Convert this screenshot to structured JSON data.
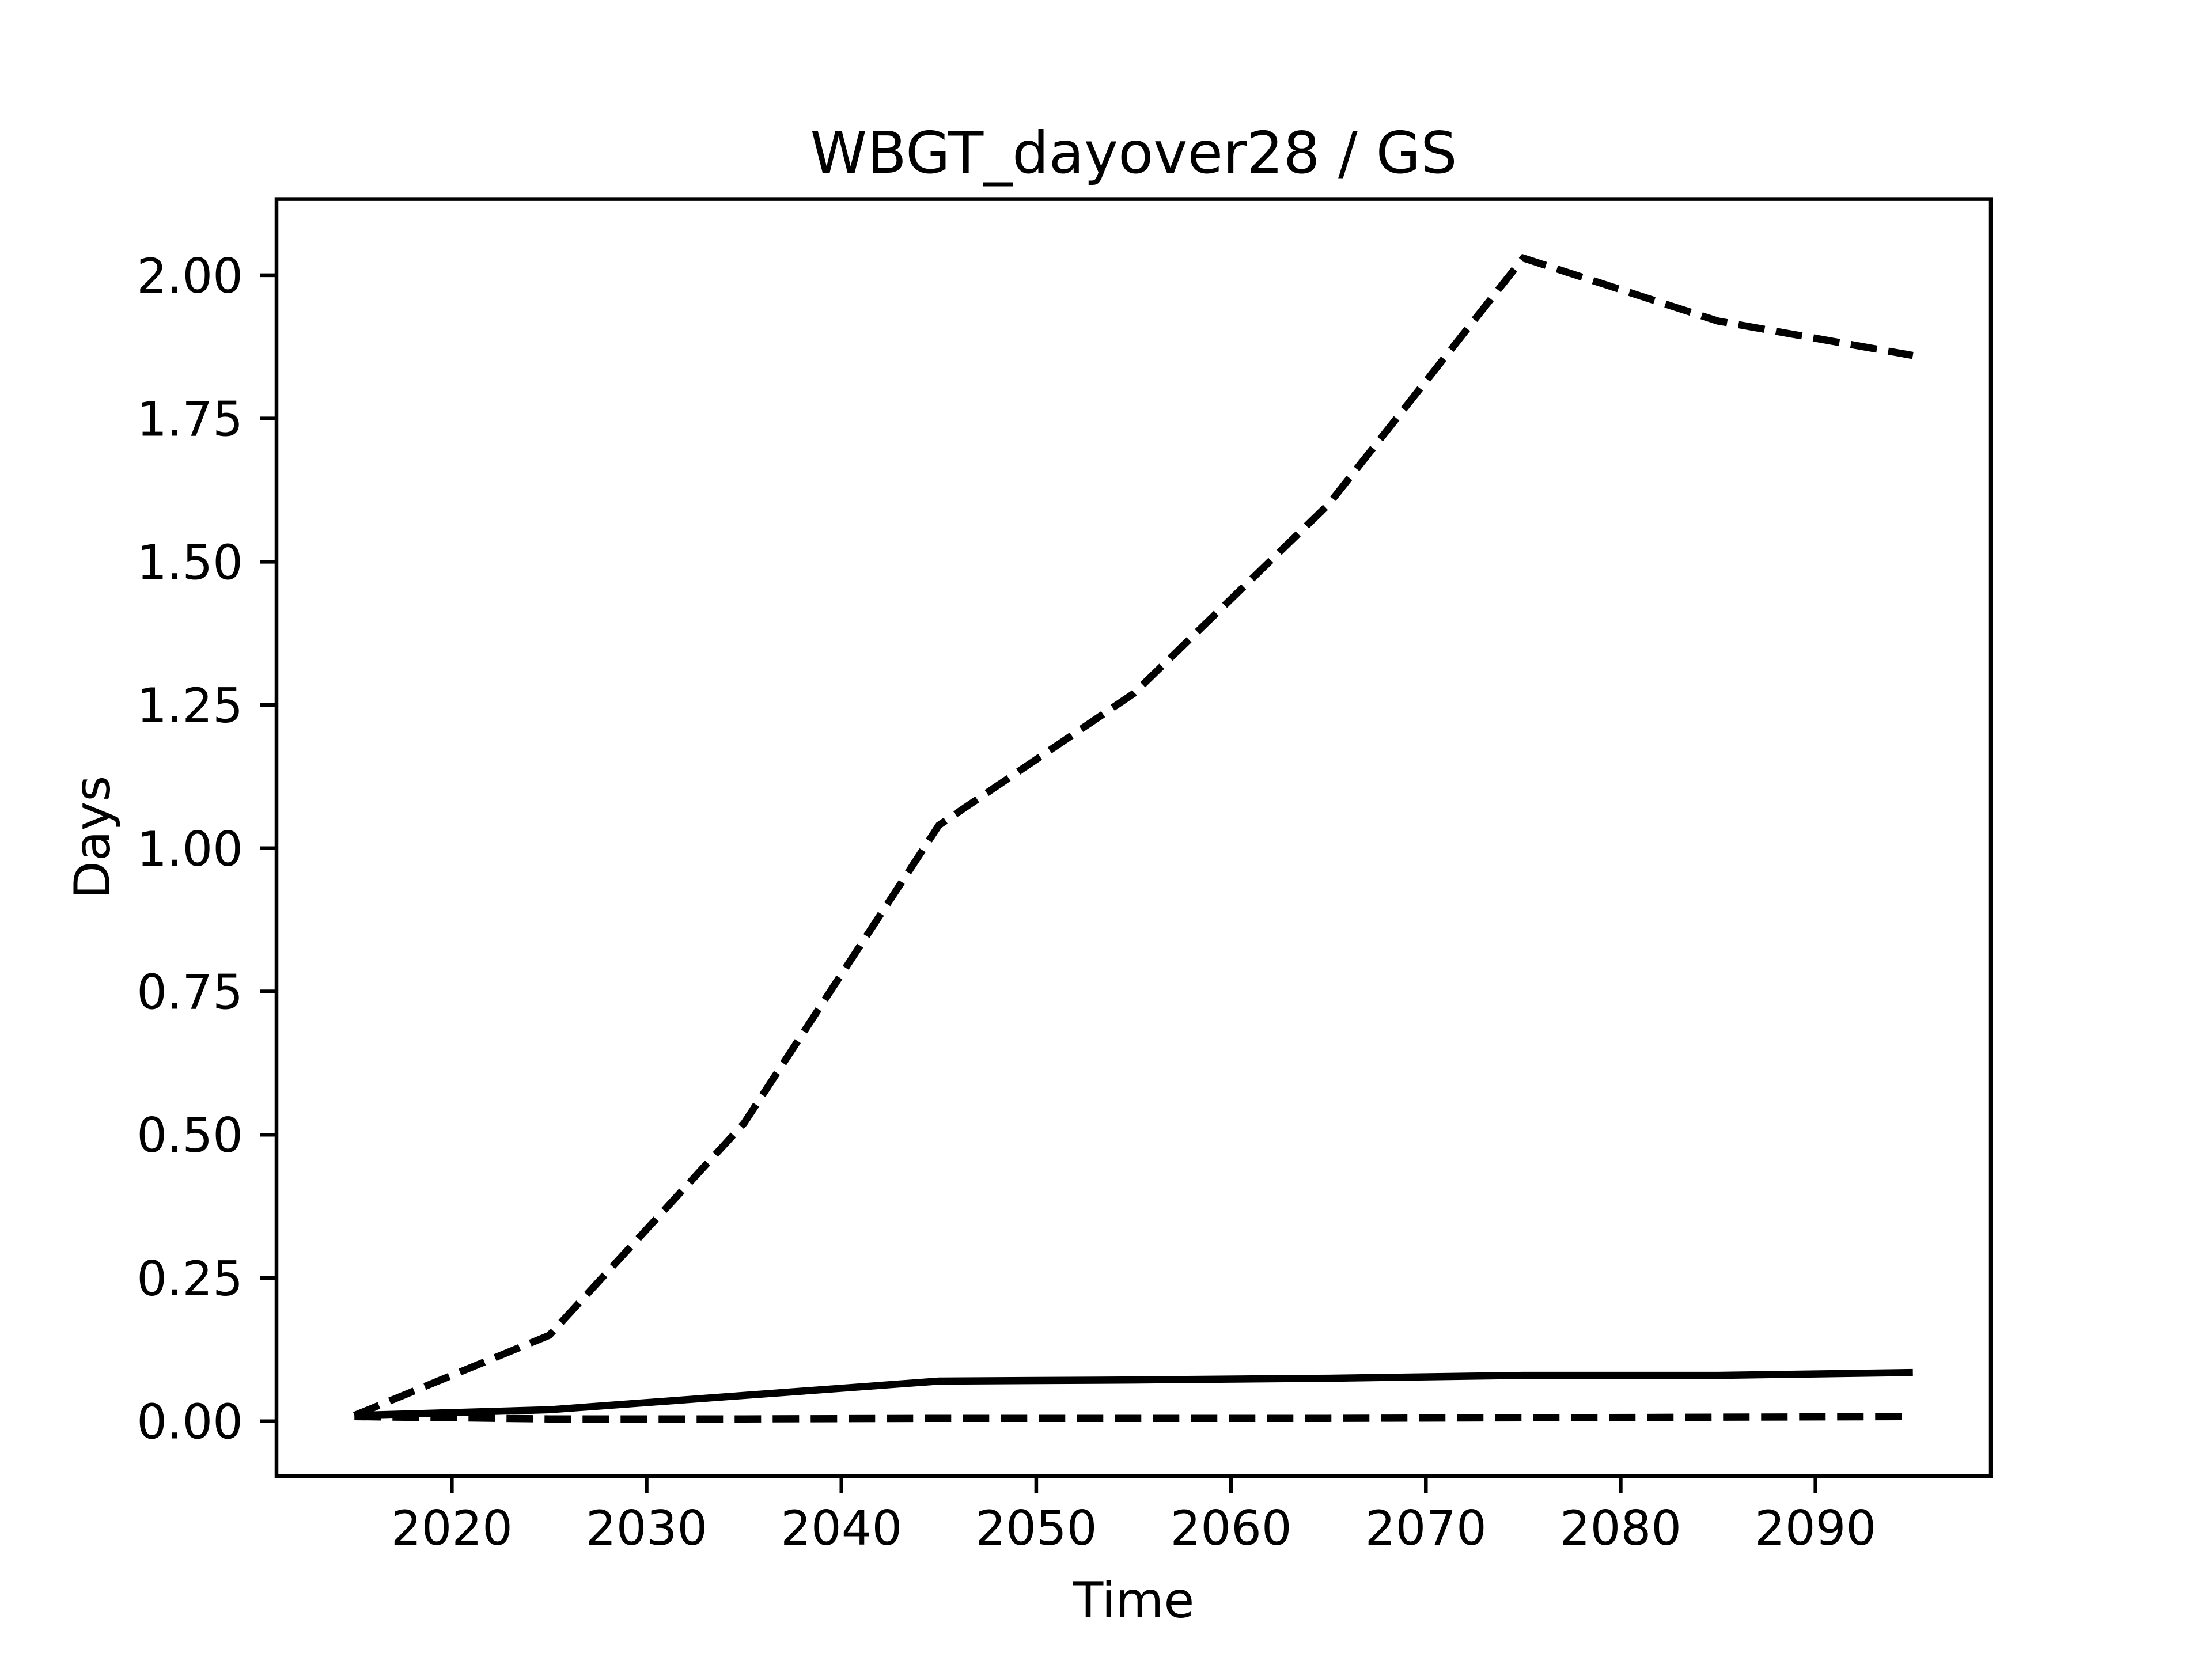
{
  "figure": {
    "background": "#ffffff",
    "line_color": "#000000"
  },
  "chart_data": {
    "type": "line",
    "title": "WBGT_dayover28 / GS",
    "xlabel": "Time",
    "ylabel": "Days",
    "x": [
      2015,
      2025,
      2035,
      2045,
      2055,
      2065,
      2075,
      2085,
      2095
    ],
    "series": [
      {
        "name": "upper-dashed-line",
        "style": "dashed",
        "values": [
          0.01,
          0.15,
          0.52,
          1.04,
          1.27,
          1.6,
          2.03,
          1.92,
          1.86
        ]
      },
      {
        "name": "solid-line",
        "style": "solid",
        "values": [
          0.01,
          0.02,
          0.045,
          0.07,
          0.072,
          0.075,
          0.08,
          0.08,
          0.085
        ]
      },
      {
        "name": "lower-dashed-line",
        "style": "dashed",
        "values": [
          0.008,
          0.004,
          0.004,
          0.005,
          0.005,
          0.005,
          0.006,
          0.007,
          0.008
        ]
      }
    ],
    "xticks": [
      2020,
      2030,
      2040,
      2050,
      2060,
      2070,
      2080,
      2090
    ],
    "yticks": [
      0.0,
      0.25,
      0.5,
      0.75,
      1.0,
      1.25,
      1.5,
      1.75,
      2.0
    ],
    "yticklabels": [
      "0.00",
      "0.25",
      "0.50",
      "0.75",
      "1.00",
      "1.25",
      "1.50",
      "1.75",
      "2.00"
    ],
    "xlim": [
      2011,
      2099
    ],
    "ylim": [
      -0.096,
      2.133
    ],
    "grid": false,
    "legend": null
  }
}
